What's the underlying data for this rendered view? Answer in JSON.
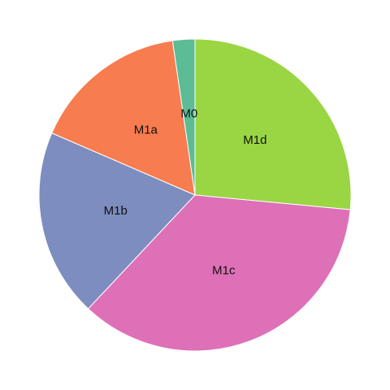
{
  "chart_data": {
    "type": "pie",
    "start_angle": "12 o'clock",
    "direction": "clockwise",
    "slices": [
      {
        "label": "M1d",
        "value": 26.5,
        "color": "#9ad544"
      },
      {
        "label": "M1c",
        "value": 35.5,
        "color": "#de70b7"
      },
      {
        "label": "M1b",
        "value": 19.5,
        "color": "#7d8dbf"
      },
      {
        "label": "M1a",
        "value": 16.2,
        "color": "#f77c4f"
      },
      {
        "label": "M0",
        "value": 2.3,
        "color": "#5cbc95"
      }
    ]
  }
}
